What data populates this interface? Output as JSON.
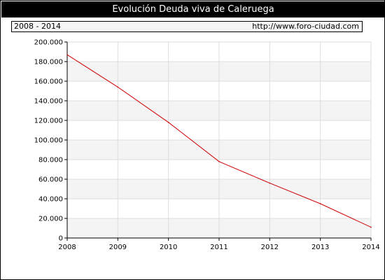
{
  "header": {
    "title": "Evolución Deuda viva de Caleruega",
    "period": "2008 - 2014",
    "source_url": "http://www.foro-ciudad.com"
  },
  "colors": {
    "line": "#cc0000",
    "band": "#f4f4f4",
    "grid": "#dddddd"
  },
  "chart_data": {
    "type": "line",
    "title": "Evolución Deuda viva de Caleruega",
    "xlabel": "",
    "ylabel": "",
    "x": [
      2008,
      2009,
      2010,
      2011,
      2012,
      2013,
      2014
    ],
    "series": [
      {
        "values": [
          187000,
          154000,
          118000,
          78000,
          56000,
          35000,
          11000
        ]
      }
    ],
    "xlim": [
      2008,
      2014
    ],
    "ylim": [
      0,
      200000
    ],
    "yticks": [
      0,
      20000,
      40000,
      60000,
      80000,
      100000,
      120000,
      140000,
      160000,
      180000,
      200000
    ],
    "ytick_labels": [
      "0",
      "20.000",
      "40.000",
      "60.000",
      "80.000",
      "100.000",
      "120.000",
      "140.000",
      "160.000",
      "180.000",
      "200.000"
    ],
    "xtick_labels": [
      "2008",
      "2009",
      "2010",
      "2011",
      "2012",
      "2013",
      "2014"
    ],
    "grid": true,
    "legend": "none"
  }
}
